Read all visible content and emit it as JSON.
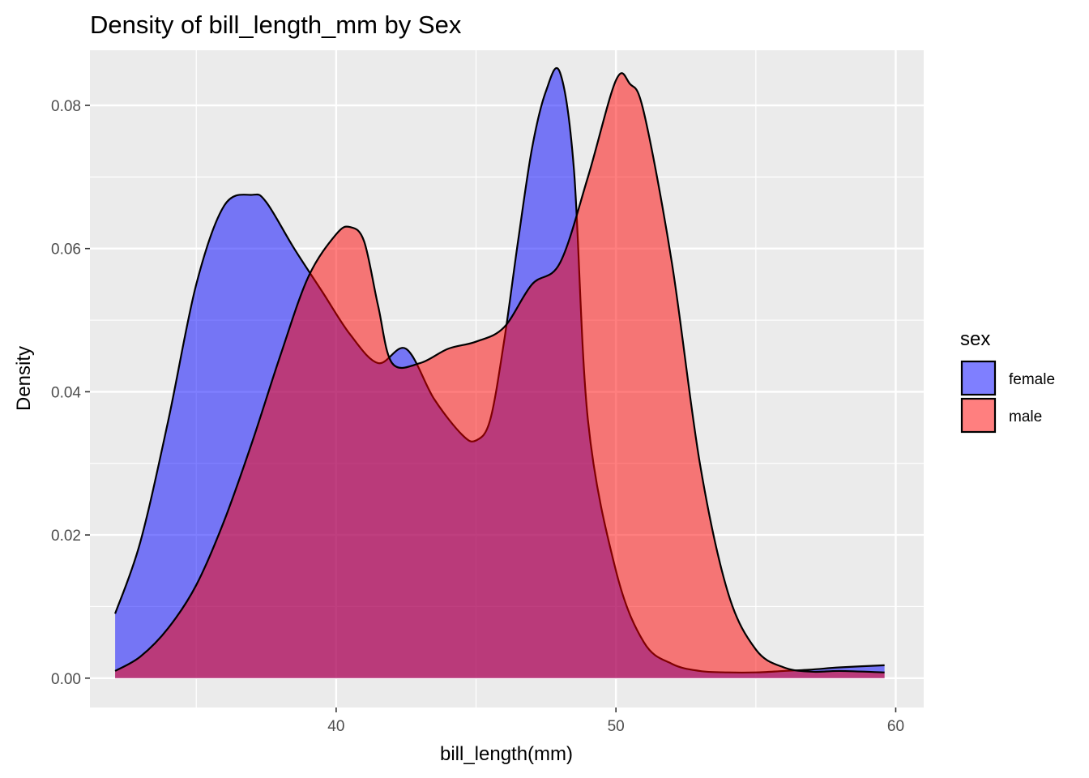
{
  "chart_data": {
    "type": "area",
    "chart_kind": "density",
    "title": "Density of bill_length_mm by Sex",
    "xlabel": "bill_length(mm)",
    "ylabel": "Density",
    "xlim": [
      31.2,
      61.0
    ],
    "ylim": [
      -0.0041,
      0.0877
    ],
    "x_ticks": [
      40,
      50,
      60
    ],
    "x_minor_ticks": [
      35,
      45,
      55
    ],
    "y_ticks": [
      0.0,
      0.02,
      0.04,
      0.06,
      0.08
    ],
    "y_tick_labels": [
      "0.00",
      "0.02",
      "0.04",
      "0.06",
      "0.08"
    ],
    "y_minor_ticks": [
      0.01,
      0.03,
      0.05,
      0.07
    ],
    "grid": true,
    "background": "#ebebeb",
    "legend": {
      "title": "sex",
      "position": "right"
    },
    "series": [
      {
        "name": "female",
        "color": "#0000ff",
        "opacity": 0.5,
        "x": [
          32.1,
          33.0,
          34.0,
          35.0,
          36.0,
          37.0,
          37.5,
          38.5,
          39.5,
          40.5,
          41.5,
          42.5,
          43.5,
          44.5,
          45.0,
          45.5,
          46.0,
          46.5,
          47.0,
          47.5,
          48.0,
          48.5,
          49.0,
          50.0,
          51.0,
          52.0,
          53.0,
          54.0,
          55.0,
          56.0,
          57.0,
          58.0,
          59.6
        ],
        "values": [
          0.009,
          0.019,
          0.036,
          0.055,
          0.066,
          0.0675,
          0.0665,
          0.06,
          0.054,
          0.048,
          0.044,
          0.046,
          0.039,
          0.034,
          0.0332,
          0.036,
          0.047,
          0.061,
          0.074,
          0.082,
          0.0846,
          0.071,
          0.036,
          0.015,
          0.005,
          0.002,
          0.001,
          0.0008,
          0.0008,
          0.001,
          0.0012,
          0.0015,
          0.0018
        ]
      },
      {
        "name": "male",
        "color": "#ff0000",
        "opacity": 0.5,
        "x": [
          32.1,
          33.0,
          34.0,
          35.0,
          36.0,
          37.0,
          38.0,
          39.0,
          40.0,
          40.5,
          41.0,
          41.5,
          42.0,
          43.0,
          44.0,
          45.0,
          46.0,
          47.0,
          48.0,
          49.0,
          50.0,
          50.5,
          51.0,
          52.0,
          53.0,
          54.0,
          55.0,
          56.0,
          57.0,
          58.0,
          59.6
        ],
        "values": [
          0.001,
          0.003,
          0.007,
          0.013,
          0.022,
          0.033,
          0.045,
          0.056,
          0.062,
          0.063,
          0.061,
          0.052,
          0.044,
          0.044,
          0.046,
          0.047,
          0.049,
          0.055,
          0.058,
          0.07,
          0.0835,
          0.083,
          0.079,
          0.058,
          0.03,
          0.012,
          0.004,
          0.0015,
          0.0009,
          0.001,
          0.0008
        ]
      }
    ]
  }
}
